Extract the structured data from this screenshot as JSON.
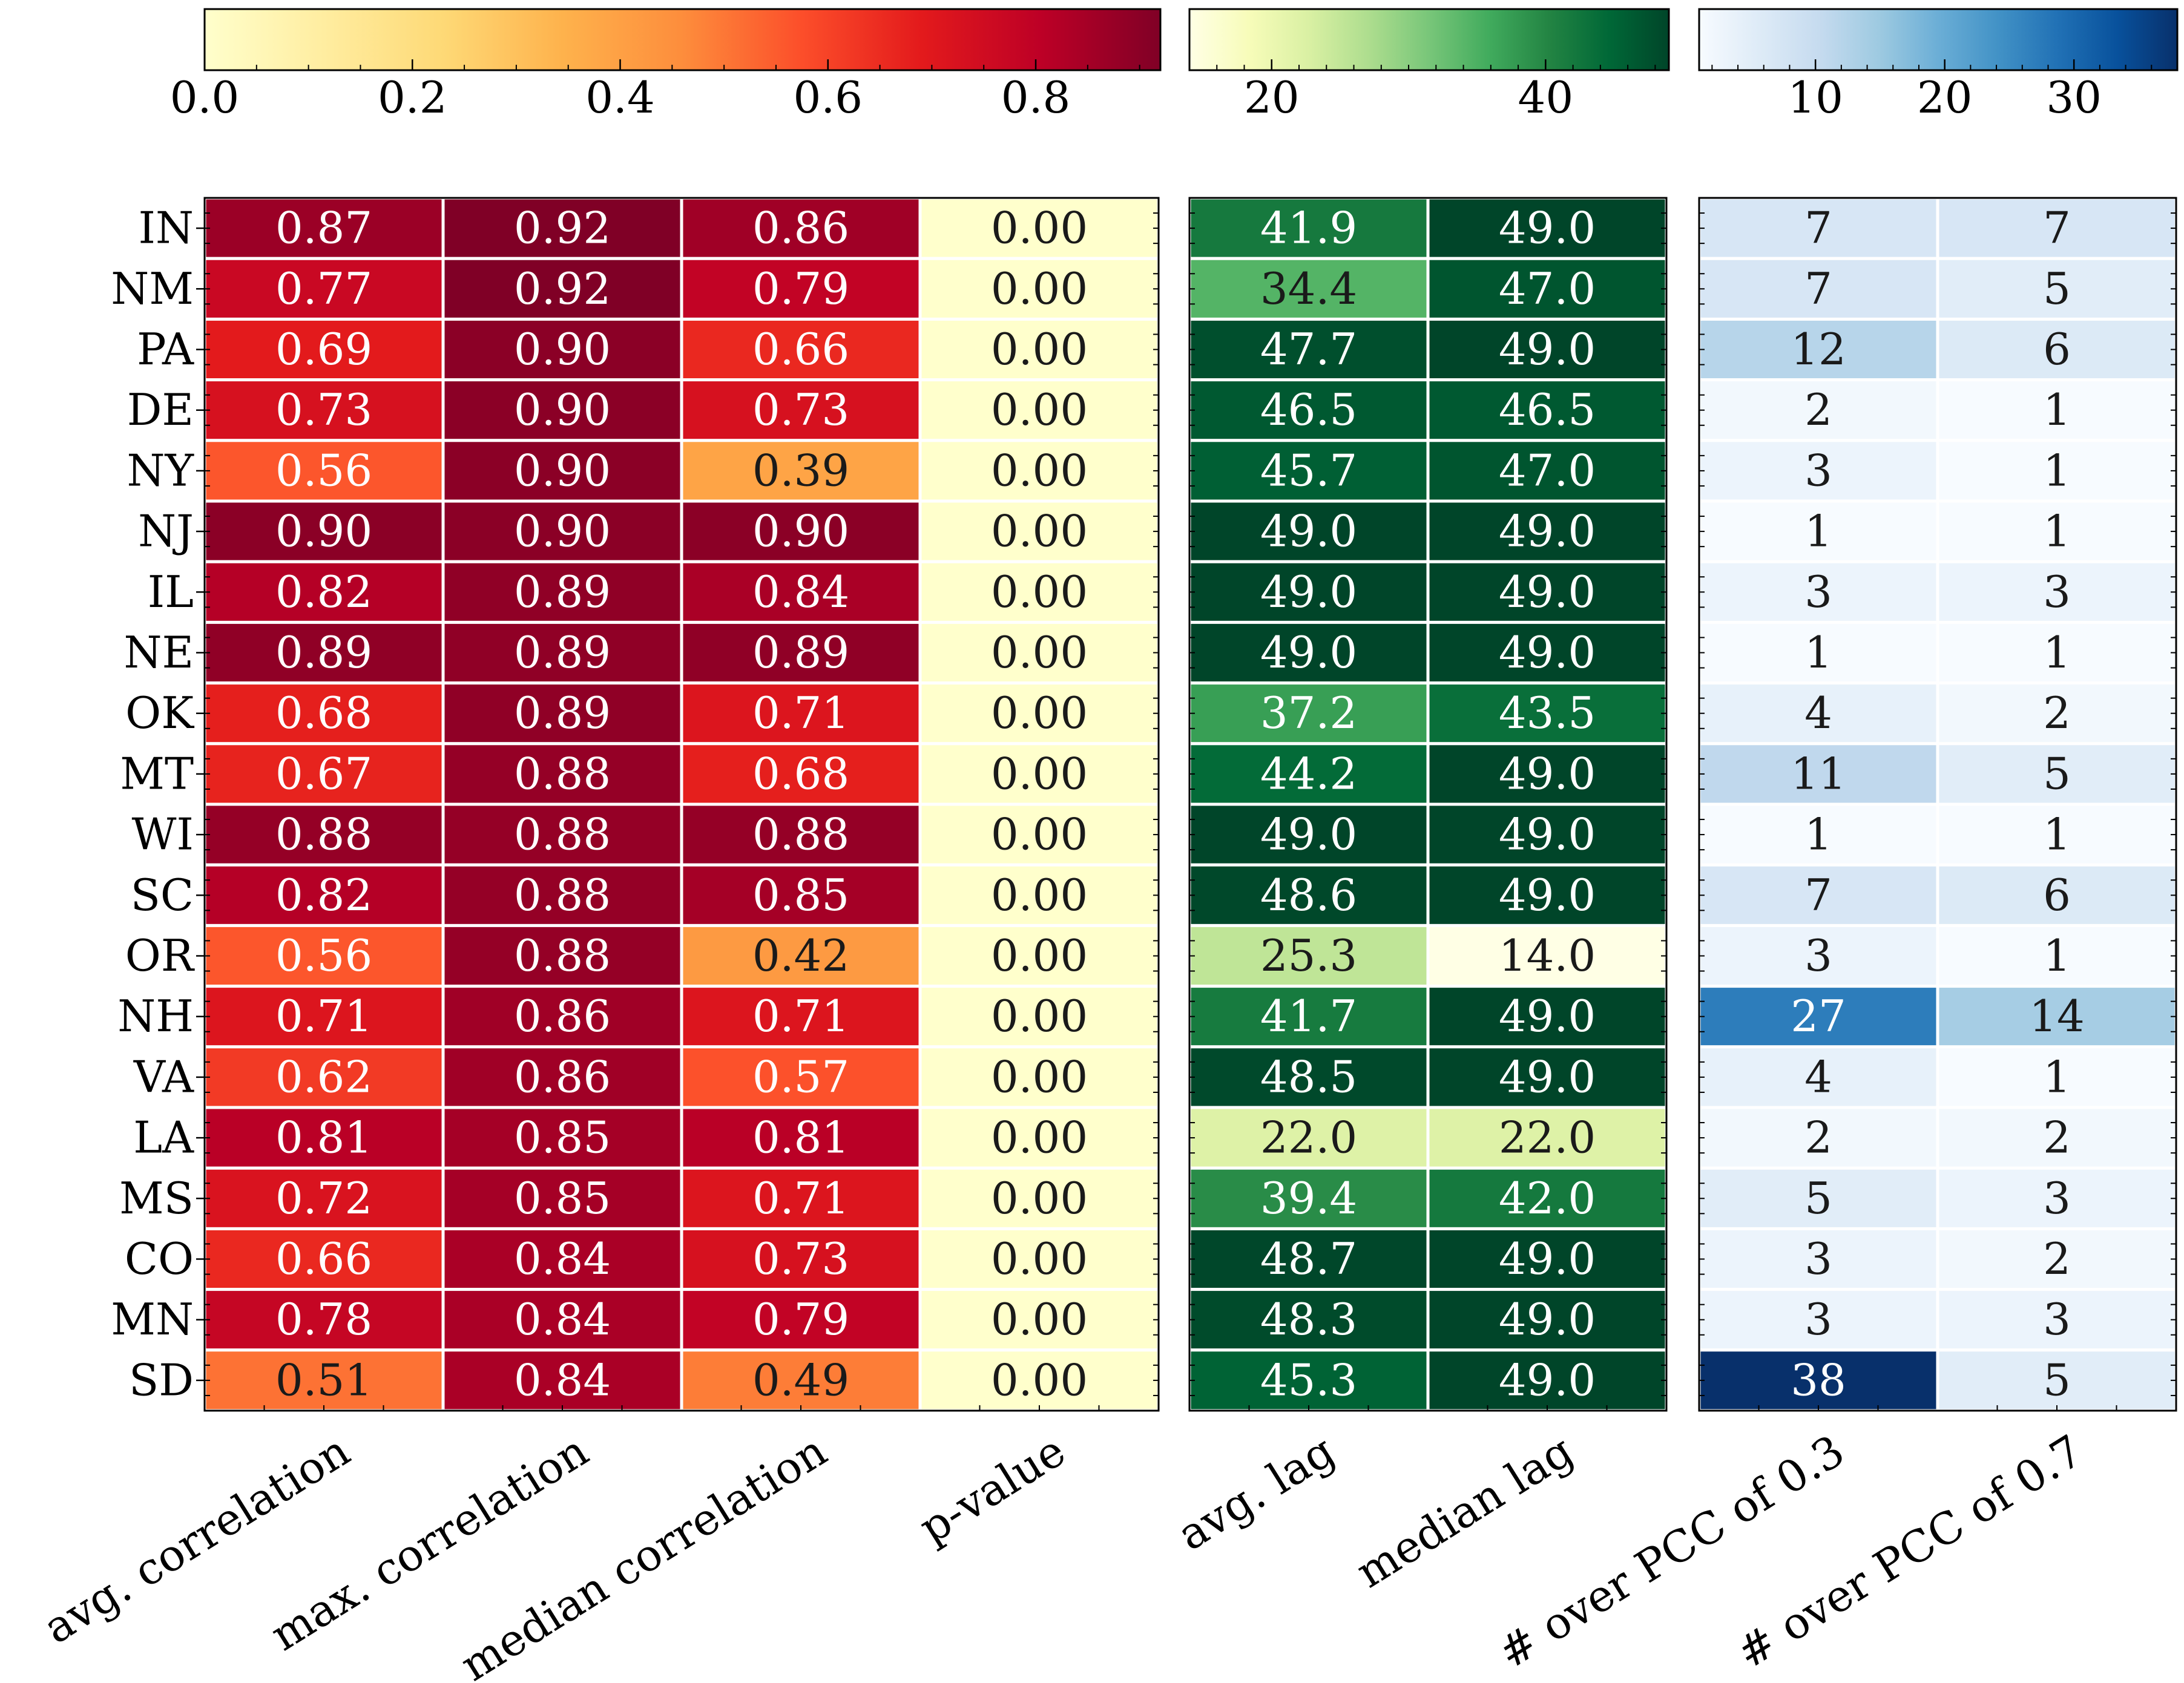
{
  "chart_data": {
    "type": "heatmap",
    "rows": [
      "IN",
      "NM",
      "PA",
      "DE",
      "NY",
      "NJ",
      "IL",
      "NE",
      "OK",
      "MT",
      "WI",
      "SC",
      "OR",
      "NH",
      "VA",
      "LA",
      "MS",
      "CO",
      "MN",
      "SD"
    ],
    "panels": [
      {
        "name": "correlation",
        "colormap": "YlOrRd",
        "colorbar": {
          "vmin": 0.0,
          "vmax": 0.92,
          "ticks": [
            0.0,
            0.2,
            0.4,
            0.6,
            0.8
          ],
          "tick_labels": [
            "0.0",
            "0.2",
            "0.4",
            "0.6",
            "0.8"
          ],
          "minor_step": 0.05
        },
        "columns": [
          "avg. correlation",
          "max. correlation",
          "median correlation",
          "p-value"
        ],
        "values": [
          [
            0.87,
            0.92,
            0.86,
            0.0
          ],
          [
            0.77,
            0.92,
            0.79,
            0.0
          ],
          [
            0.69,
            0.9,
            0.66,
            0.0
          ],
          [
            0.73,
            0.9,
            0.73,
            0.0
          ],
          [
            0.56,
            0.9,
            0.39,
            0.0
          ],
          [
            0.9,
            0.9,
            0.9,
            0.0
          ],
          [
            0.82,
            0.89,
            0.84,
            0.0
          ],
          [
            0.89,
            0.89,
            0.89,
            0.0
          ],
          [
            0.68,
            0.89,
            0.71,
            0.0
          ],
          [
            0.67,
            0.88,
            0.68,
            0.0
          ],
          [
            0.88,
            0.88,
            0.88,
            0.0
          ],
          [
            0.82,
            0.88,
            0.85,
            0.0
          ],
          [
            0.56,
            0.88,
            0.42,
            0.0
          ],
          [
            0.71,
            0.86,
            0.71,
            0.0
          ],
          [
            0.62,
            0.86,
            0.57,
            0.0
          ],
          [
            0.81,
            0.85,
            0.81,
            0.0
          ],
          [
            0.72,
            0.85,
            0.71,
            0.0
          ],
          [
            0.66,
            0.84,
            0.73,
            0.0
          ],
          [
            0.78,
            0.84,
            0.79,
            0.0
          ],
          [
            0.51,
            0.84,
            0.49,
            0.0
          ]
        ],
        "labels": [
          [
            "0.87",
            "0.92",
            "0.86",
            "0.00"
          ],
          [
            "0.77",
            "0.92",
            "0.79",
            "0.00"
          ],
          [
            "0.69",
            "0.90",
            "0.66",
            "0.00"
          ],
          [
            "0.73",
            "0.90",
            "0.73",
            "0.00"
          ],
          [
            "0.56",
            "0.90",
            "0.39",
            "0.00"
          ],
          [
            "0.90",
            "0.90",
            "0.90",
            "0.00"
          ],
          [
            "0.82",
            "0.89",
            "0.84",
            "0.00"
          ],
          [
            "0.89",
            "0.89",
            "0.89",
            "0.00"
          ],
          [
            "0.68",
            "0.89",
            "0.71",
            "0.00"
          ],
          [
            "0.67",
            "0.88",
            "0.68",
            "0.00"
          ],
          [
            "0.88",
            "0.88",
            "0.88",
            "0.00"
          ],
          [
            "0.82",
            "0.88",
            "0.85",
            "0.00"
          ],
          [
            "0.56",
            "0.88",
            "0.42",
            "0.00"
          ],
          [
            "0.71",
            "0.86",
            "0.71",
            "0.00"
          ],
          [
            "0.62",
            "0.86",
            "0.57",
            "0.00"
          ],
          [
            "0.81",
            "0.85",
            "0.81",
            "0.00"
          ],
          [
            "0.72",
            "0.85",
            "0.71",
            "0.00"
          ],
          [
            "0.66",
            "0.84",
            "0.73",
            "0.00"
          ],
          [
            "0.78",
            "0.84",
            "0.79",
            "0.00"
          ],
          [
            "0.51",
            "0.84",
            "0.49",
            "0.00"
          ]
        ]
      },
      {
        "name": "lag",
        "colormap": "YlGn",
        "colorbar": {
          "vmin": 14.0,
          "vmax": 49.0,
          "ticks": [
            20,
            40
          ],
          "tick_labels": [
            "20",
            "40"
          ],
          "minor_step": 2
        },
        "columns": [
          "avg. lag",
          "median lag"
        ],
        "values": [
          [
            41.9,
            49.0
          ],
          [
            34.4,
            47.0
          ],
          [
            47.7,
            49.0
          ],
          [
            46.5,
            46.5
          ],
          [
            45.7,
            47.0
          ],
          [
            49.0,
            49.0
          ],
          [
            49.0,
            49.0
          ],
          [
            49.0,
            49.0
          ],
          [
            37.2,
            43.5
          ],
          [
            44.2,
            49.0
          ],
          [
            49.0,
            49.0
          ],
          [
            48.6,
            49.0
          ],
          [
            25.3,
            14.0
          ],
          [
            41.7,
            49.0
          ],
          [
            48.5,
            49.0
          ],
          [
            22.0,
            22.0
          ],
          [
            39.4,
            42.0
          ],
          [
            48.7,
            49.0
          ],
          [
            48.3,
            49.0
          ],
          [
            45.3,
            49.0
          ]
        ],
        "labels": [
          [
            "41.9",
            "49.0"
          ],
          [
            "34.4",
            "47.0"
          ],
          [
            "47.7",
            "49.0"
          ],
          [
            "46.5",
            "46.5"
          ],
          [
            "45.7",
            "47.0"
          ],
          [
            "49.0",
            "49.0"
          ],
          [
            "49.0",
            "49.0"
          ],
          [
            "49.0",
            "49.0"
          ],
          [
            "37.2",
            "43.5"
          ],
          [
            "44.2",
            "49.0"
          ],
          [
            "49.0",
            "49.0"
          ],
          [
            "48.6",
            "49.0"
          ],
          [
            "25.3",
            "14.0"
          ],
          [
            "41.7",
            "49.0"
          ],
          [
            "48.5",
            "49.0"
          ],
          [
            "22.0",
            "22.0"
          ],
          [
            "39.4",
            "42.0"
          ],
          [
            "48.7",
            "49.0"
          ],
          [
            "48.3",
            "49.0"
          ],
          [
            "45.3",
            "49.0"
          ]
        ]
      },
      {
        "name": "counts",
        "colormap": "Blues",
        "colorbar": {
          "vmin": 1,
          "vmax": 38,
          "ticks": [
            10,
            20,
            30
          ],
          "tick_labels": [
            "10",
            "20",
            "30"
          ],
          "minor_step": 2
        },
        "columns": [
          "# over PCC of 0.3",
          "# over PCC of 0.7"
        ],
        "values": [
          [
            7,
            7
          ],
          [
            7,
            5
          ],
          [
            12,
            6
          ],
          [
            2,
            1
          ],
          [
            3,
            1
          ],
          [
            1,
            1
          ],
          [
            3,
            3
          ],
          [
            1,
            1
          ],
          [
            4,
            2
          ],
          [
            11,
            5
          ],
          [
            1,
            1
          ],
          [
            7,
            6
          ],
          [
            3,
            1
          ],
          [
            27,
            14
          ],
          [
            4,
            1
          ],
          [
            2,
            2
          ],
          [
            5,
            3
          ],
          [
            3,
            2
          ],
          [
            3,
            3
          ],
          [
            38,
            5
          ]
        ],
        "labels": [
          [
            "7",
            "7"
          ],
          [
            "7",
            "5"
          ],
          [
            "12",
            "6"
          ],
          [
            "2",
            "1"
          ],
          [
            "3",
            "1"
          ],
          [
            "1",
            "1"
          ],
          [
            "3",
            "3"
          ],
          [
            "1",
            "1"
          ],
          [
            "4",
            "2"
          ],
          [
            "11",
            "5"
          ],
          [
            "1",
            "1"
          ],
          [
            "7",
            "6"
          ],
          [
            "3",
            "1"
          ],
          [
            "27",
            "14"
          ],
          [
            "4",
            "1"
          ],
          [
            "2",
            "2"
          ],
          [
            "5",
            "3"
          ],
          [
            "3",
            "2"
          ],
          [
            "3",
            "3"
          ],
          [
            "38",
            "5"
          ]
        ]
      }
    ]
  }
}
